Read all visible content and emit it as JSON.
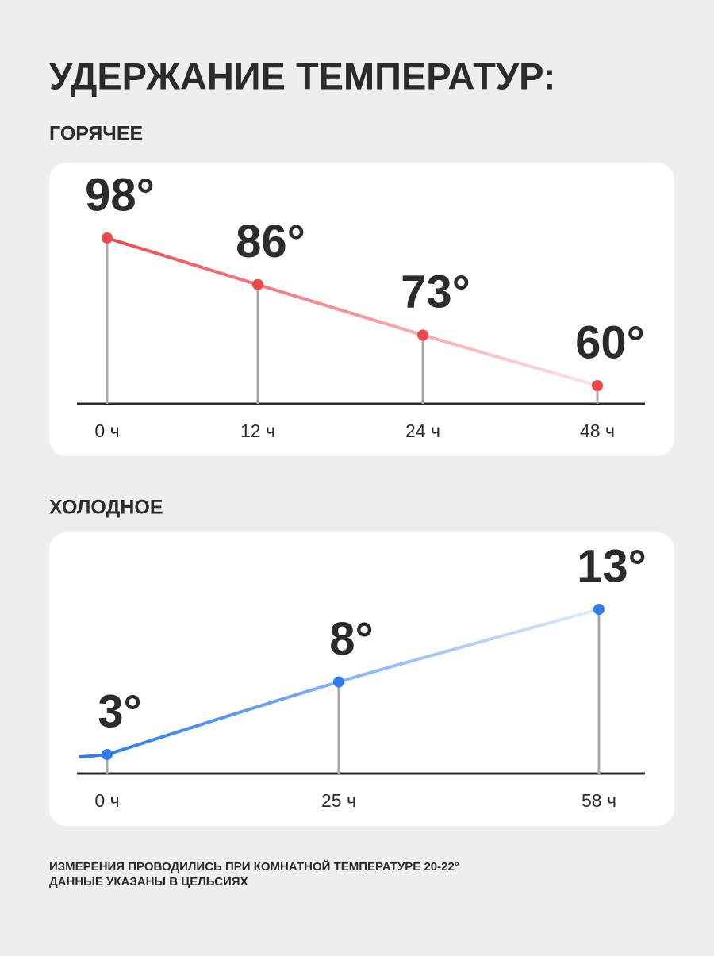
{
  "title": "УДЕРЖАНИЕ ТЕМПЕРАТУР:",
  "chart_data": [
    {
      "type": "line",
      "title": "ГОРЯЧЕЕ",
      "categories": [
        "0 ч",
        "12 ч",
        "24 ч",
        "48 ч"
      ],
      "values": [
        98,
        86,
        73,
        60
      ],
      "value_labels": [
        "98°",
        "86°",
        "73°",
        "60°"
      ],
      "color": "#f0474d"
    },
    {
      "type": "line",
      "title": "ХОЛОДНОЕ",
      "categories": [
        "0 ч",
        "25 ч",
        "58 ч"
      ],
      "values": [
        3,
        8,
        13
      ],
      "value_labels": [
        "3°",
        "8°",
        "13°"
      ],
      "color": "#2f7cf0"
    }
  ],
  "notes": [
    "ИЗМЕРЕНИЯ ПРОВОДИЛИСЬ ПРИ КОМНАТНОЙ ТЕМПЕРАТУРЕ 20-22°",
    "ДАННЫЕ УКАЗАНЫ В ЦЕЛЬСИЯХ"
  ]
}
